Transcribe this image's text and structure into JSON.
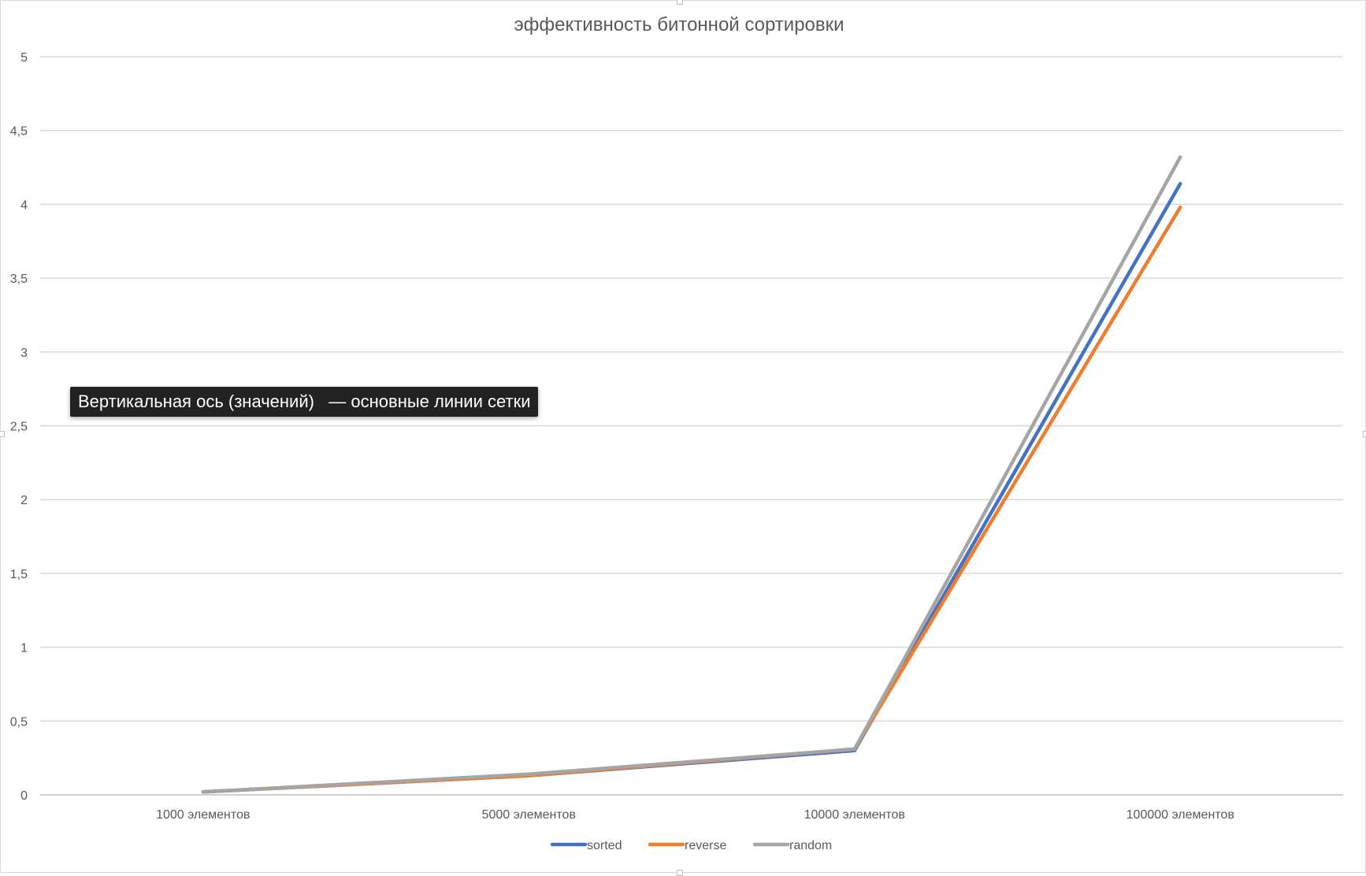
{
  "tooltip": {
    "text": "Вертикальная ось (значений)   — основные линии сетки"
  },
  "chart_data": {
    "type": "line",
    "title": "эффективность битонной сортировки",
    "xlabel": "",
    "ylabel": "",
    "categories": [
      "1000 элементов",
      "5000 элементов",
      "10000 элементов",
      "100000 элементов"
    ],
    "ylim": [
      0,
      5
    ],
    "yticks": [
      0,
      0.5,
      1,
      1.5,
      2,
      2.5,
      3,
      3.5,
      4,
      4.5,
      5
    ],
    "ytick_labels": [
      "0",
      "0,5",
      "1",
      "1,5",
      "2",
      "2,5",
      "3",
      "3,5",
      "4",
      "4,5",
      "5"
    ],
    "grid": true,
    "legend_position": "bottom",
    "series": [
      {
        "name": "sorted",
        "color": "#4472C4",
        "values": [
          0.02,
          0.13,
          0.3,
          4.14
        ]
      },
      {
        "name": "reverse",
        "color": "#ED7D31",
        "values": [
          0.02,
          0.13,
          0.31,
          3.98
        ]
      },
      {
        "name": "random",
        "color": "#A5A5A5",
        "values": [
          0.02,
          0.14,
          0.31,
          4.32
        ]
      }
    ]
  }
}
